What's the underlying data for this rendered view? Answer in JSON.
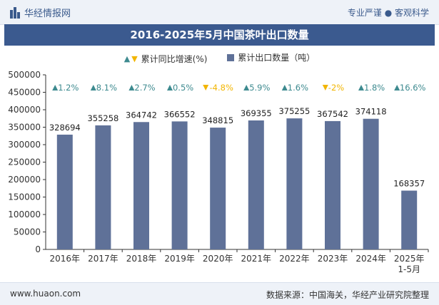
{
  "header": {
    "brand": "华经情报网",
    "tagline": "专业严谨 ● 客观科学"
  },
  "chart_data": {
    "type": "bar",
    "title": "2016-2025年5月中国茶叶出口数量",
    "categories": [
      "2016年",
      "2017年",
      "2018年",
      "2019年",
      "2020年",
      "2021年",
      "2022年",
      "2023年",
      "2024年",
      "2025年\n1-5月"
    ],
    "series": [
      {
        "name": "累计出口数量（吨）",
        "values": [
          328694,
          355258,
          364742,
          366552,
          348815,
          369355,
          375255,
          367542,
          374118,
          168357
        ],
        "color": "#5f7198"
      },
      {
        "name": "累计同比增速(%)",
        "values": [
          1.2,
          8.1,
          2.7,
          0.5,
          -4.8,
          5.9,
          1.6,
          -2,
          1.8,
          16.6
        ],
        "labels": [
          "1.2%",
          "8.1%",
          "2.7%",
          "0.5%",
          "-4.8%",
          "5.9%",
          "1.6%",
          "-2%",
          "1.8%",
          "16.6%"
        ],
        "color_up": "#3d8a8f",
        "color_down": "#f2b500"
      }
    ],
    "ylim": [
      0,
      500000
    ],
    "yticks": [
      0,
      50000,
      100000,
      150000,
      200000,
      250000,
      300000,
      350000,
      400000,
      450000,
      500000
    ],
    "legend_position": "top"
  },
  "legend": {
    "growth_label": "累计同比增速(%)",
    "volume_label": "累计出口数量（吨）"
  },
  "footer": {
    "site": "www.huaon.com",
    "source": "数据来源：中国海关，华经产业研究院整理"
  }
}
